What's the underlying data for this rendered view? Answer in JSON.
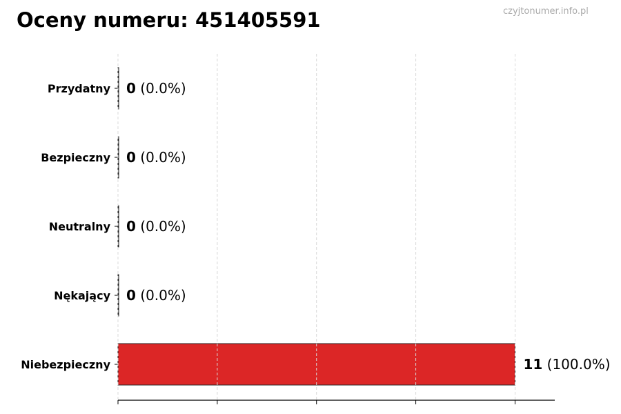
{
  "title": "Oceny numeru: 451405591",
  "watermark": "czyjtonumer.info.pl",
  "chart_data": {
    "type": "bar",
    "orientation": "horizontal",
    "categories": [
      "Przydatny",
      "Bezpieczny",
      "Neutralny",
      "Nękający",
      "Niebezpieczny"
    ],
    "values": [
      0,
      0,
      0,
      0,
      11
    ],
    "value_labels": [
      "(0.0%)",
      "(0.0%)",
      "(0.0%)",
      "(0.0%)",
      "(100.0%)"
    ],
    "xlim": [
      0,
      12.1
    ],
    "xticks": [
      0,
      2.75,
      5.5,
      8.25,
      11
    ],
    "grid": "x, dashed",
    "colors": {
      "bar": "#dc2626",
      "edge": "#222222",
      "grid": "#d8d8d8"
    }
  }
}
